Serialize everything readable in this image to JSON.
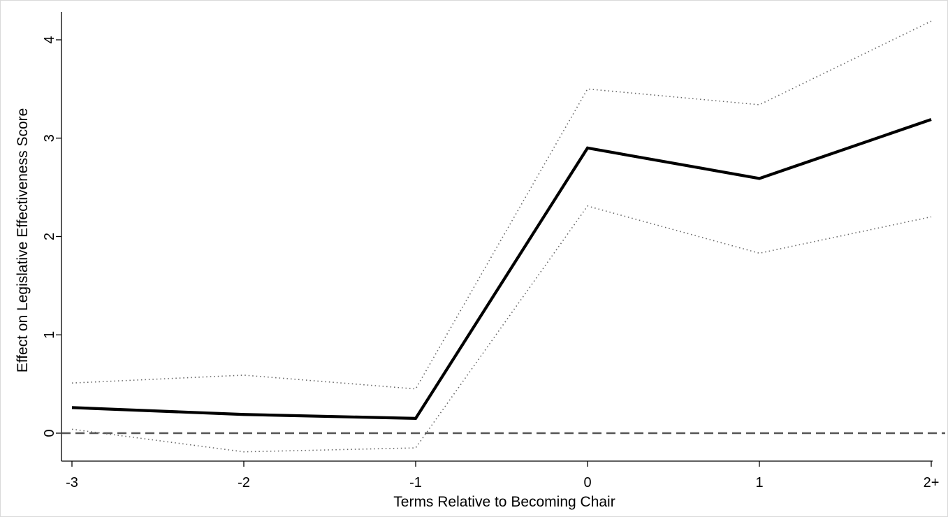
{
  "chart_data": {
    "type": "line",
    "title": "",
    "xlabel": "Terms Relative to Becoming Chair",
    "ylabel": "Effect on Legislative Effectiveness Score",
    "categories": [
      "-3",
      "-2",
      "-1",
      "0",
      "1",
      "2+"
    ],
    "yticks": [
      "0",
      "1",
      "2",
      "3",
      "4"
    ],
    "ylim": [
      -0.3,
      4.3
    ],
    "grid": false,
    "legend": "none",
    "reference_line": {
      "y": 0,
      "style": "dashed",
      "color": "#555555"
    },
    "series": [
      {
        "role": "estimate",
        "style": "solid",
        "color": "#000000",
        "values": [
          0.26,
          0.19,
          0.15,
          2.9,
          2.59,
          3.19
        ]
      },
      {
        "role": "upper-bound",
        "style": "dotted",
        "color": "#666666",
        "values": [
          0.51,
          0.59,
          0.45,
          3.5,
          3.34,
          4.19
        ]
      },
      {
        "role": "lower-bound",
        "style": "dotted",
        "color": "#666666",
        "values": [
          0.04,
          -0.19,
          -0.15,
          2.31,
          1.83,
          2.2
        ]
      }
    ]
  }
}
